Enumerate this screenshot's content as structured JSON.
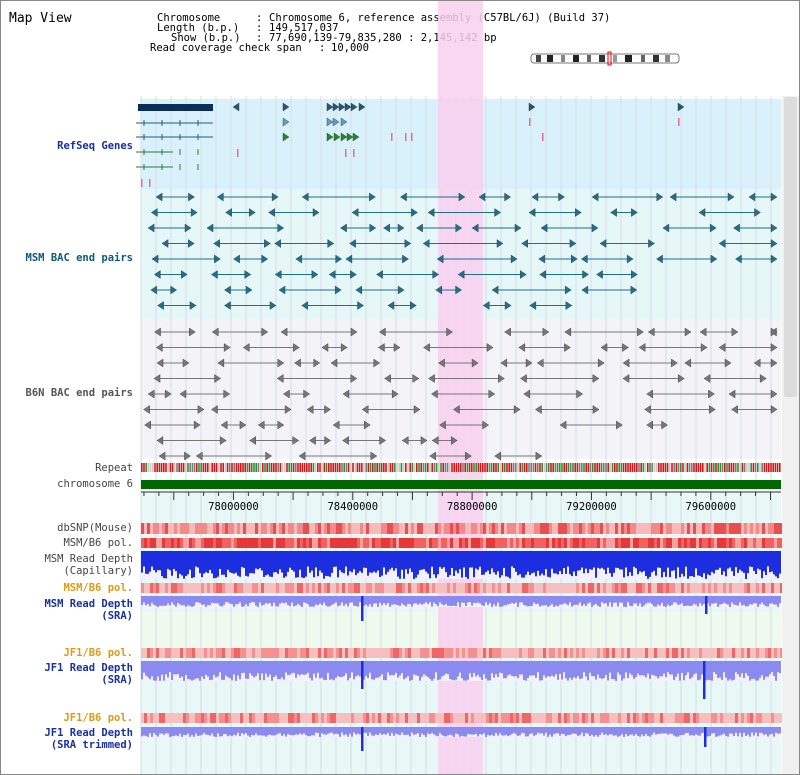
{
  "view_title": "Map View",
  "info": {
    "chromosome_label": "Chromosome",
    "chromosome_value": "Chromosome 6, reference assembly (C57BL/6J) (Build 37)",
    "length_label": "Length (b.p.)",
    "length_value": "149,517,037",
    "show_label": "Show (b.p.)",
    "show_value": "77,690,139-79,835,280 : 2,145,142 bp",
    "coverage_label": "Read coverage check span",
    "coverage_value": "10,000"
  },
  "tracks": {
    "refseq": "RefSeq Genes",
    "msm_bac": "MSM BAC end pairs",
    "b6n_bac": "B6N BAC end pairs",
    "repeat": "Repeat",
    "chromosome": "chromosome 6",
    "dbsnp": "dbSNP(Mouse)",
    "msm_b6_pol_1": "MSM/B6 pol.",
    "msm_depth_cap_1": "MSM Read Depth",
    "msm_depth_cap_2": "(Capillary)",
    "msm_b6_pol_2": "MSM/B6 pol.",
    "msm_depth_sra_1": "MSM Read Depth",
    "msm_depth_sra_2": "(SRA)",
    "jf1_b6_pol_1": "JF1/B6 pol.",
    "jf1_depth_sra_1": "JF1 Read Depth",
    "jf1_depth_sra_2": "(SRA)",
    "jf1_b6_pol_2": "JF1/B6 pol.",
    "jf1_depth_trim_1": "JF1 Read Depth",
    "jf1_depth_trim_2": "(SRA trimmed)"
  },
  "axis": {
    "ticks": [
      "78000000",
      "78400000",
      "78800000",
      "79200000",
      "79600000"
    ],
    "tick_values": [
      78000000,
      78400000,
      78800000,
      79200000,
      79600000
    ],
    "range": [
      77690139,
      79835280
    ]
  },
  "colors": {
    "refseq_band": "#d9f1fa",
    "bac_band": "#e6f7f8",
    "highlight": "#f8d0ee",
    "gene_dark": "#0a2d5a",
    "msm_line": "#1f6f8f",
    "b6n_line": "#777777",
    "chromosome_bar": "#006600",
    "snp_red": "#e85050",
    "depth_blue": "#1c2ee0",
    "depth_light": "#8a8af0"
  }
}
